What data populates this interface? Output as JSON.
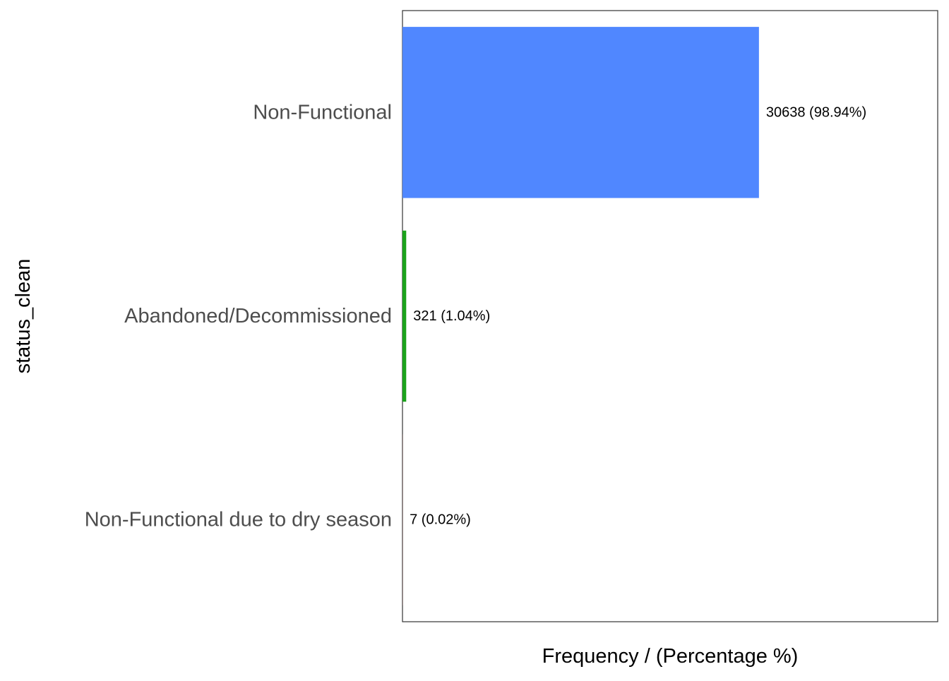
{
  "chart_data": {
    "type": "bar",
    "orientation": "horizontal",
    "title": "",
    "xlabel": "Frequency / (Percentage %)",
    "ylabel": "status_clean",
    "xlim": [
      0,
      46000
    ],
    "x_tick_labels_shown": false,
    "grid": false,
    "legend": "none",
    "categories": [
      "Non-Functional",
      "Abandoned/Decommissioned",
      "Non-Functional due to dry season"
    ],
    "values": [
      30638,
      321,
      7
    ],
    "data_labels": [
      "30638 (98.94%)",
      "321 (1.04%)",
      "7 (0.02%)"
    ],
    "colors": [
      "#5087FF",
      "#1BA21B",
      "#F8766D"
    ]
  }
}
